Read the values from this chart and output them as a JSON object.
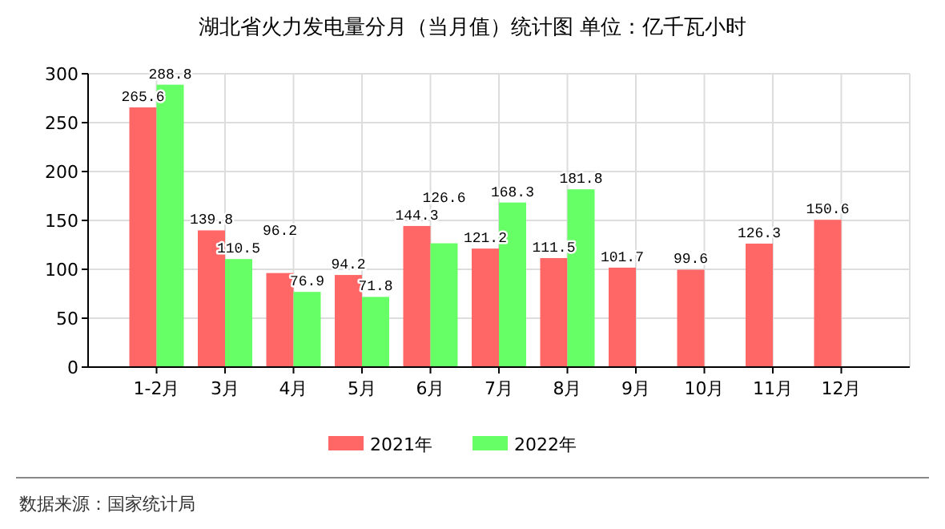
{
  "chart_data": {
    "type": "bar",
    "title": "湖北省火力发电量分月（当月值）统计图 单位：亿千瓦小时",
    "categories": [
      "1-2月",
      "3月",
      "4月",
      "5月",
      "6月",
      "7月",
      "8月",
      "9月",
      "10月",
      "11月",
      "12月"
    ],
    "series": [
      {
        "name": "2021年",
        "color": "#ff6666",
        "values": [
          265.6,
          139.8,
          96.2,
          94.2,
          144.3,
          121.2,
          111.5,
          101.7,
          99.6,
          126.3,
          150.6
        ]
      },
      {
        "name": "2022年",
        "color": "#66ff66",
        "values": [
          288.8,
          110.5,
          76.9,
          71.8,
          126.6,
          168.3,
          181.8,
          null,
          null,
          null,
          null
        ]
      }
    ],
    "ylim": [
      0,
      300
    ],
    "yticks": [
      0,
      50,
      100,
      150,
      200,
      250,
      300
    ],
    "grid": true,
    "legend": "bottom",
    "data_labels": true,
    "annotations": [
      "数据来源：国家统计局"
    ]
  }
}
